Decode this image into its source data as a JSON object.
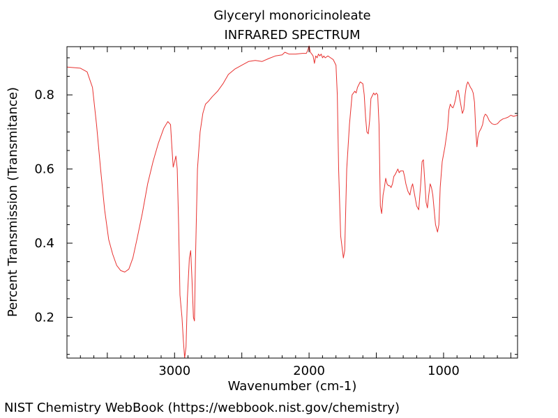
{
  "chart_data": {
    "type": "line",
    "title": "Glyceryl monoricinoleate",
    "subtitle": "INFRARED SPECTRUM",
    "xlabel": "Wavenumber (cm-1)",
    "ylabel": "Percent Transmission (Transmitance)",
    "xlim": [
      3800,
      450
    ],
    "ylim": [
      0.09,
      0.93
    ],
    "x_reversed": true,
    "x_ticks": [
      3000,
      2000,
      1000
    ],
    "x_tick_labels": [
      "3000",
      "2000",
      "1000"
    ],
    "y_ticks": [
      0.2,
      0.4,
      0.6,
      0.8
    ],
    "y_tick_labels": [
      "0.2",
      "0.4",
      "0.6",
      "0.8"
    ],
    "grid": false,
    "series": [
      {
        "color": "#e8312f",
        "points": [
          [
            3800,
            0.875
          ],
          [
            3700,
            0.872
          ],
          [
            3650,
            0.862
          ],
          [
            3610,
            0.82
          ],
          [
            3580,
            0.72
          ],
          [
            3550,
            0.6
          ],
          [
            3520,
            0.49
          ],
          [
            3490,
            0.41
          ],
          [
            3460,
            0.37
          ],
          [
            3430,
            0.34
          ],
          [
            3400,
            0.326
          ],
          [
            3370,
            0.322
          ],
          [
            3340,
            0.33
          ],
          [
            3310,
            0.36
          ],
          [
            3280,
            0.41
          ],
          [
            3240,
            0.48
          ],
          [
            3200,
            0.56
          ],
          [
            3160,
            0.62
          ],
          [
            3120,
            0.67
          ],
          [
            3080,
            0.71
          ],
          [
            3050,
            0.728
          ],
          [
            3030,
            0.72
          ],
          [
            3020,
            0.66
          ],
          [
            3010,
            0.605
          ],
          [
            3000,
            0.62
          ],
          [
            2990,
            0.635
          ],
          [
            2980,
            0.6
          ],
          [
            2970,
            0.45
          ],
          [
            2960,
            0.26
          ],
          [
            2945,
            0.2
          ],
          [
            2935,
            0.14
          ],
          [
            2925,
            0.09
          ],
          [
            2915,
            0.12
          ],
          [
            2905,
            0.25
          ],
          [
            2890,
            0.36
          ],
          [
            2880,
            0.38
          ],
          [
            2870,
            0.3
          ],
          [
            2860,
            0.2
          ],
          [
            2852,
            0.19
          ],
          [
            2845,
            0.35
          ],
          [
            2830,
            0.6
          ],
          [
            2810,
            0.7
          ],
          [
            2790,
            0.75
          ],
          [
            2770,
            0.775
          ],
          [
            2750,
            0.782
          ],
          [
            2720,
            0.795
          ],
          [
            2680,
            0.81
          ],
          [
            2640,
            0.83
          ],
          [
            2600,
            0.855
          ],
          [
            2550,
            0.87
          ],
          [
            2500,
            0.88
          ],
          [
            2450,
            0.89
          ],
          [
            2400,
            0.893
          ],
          [
            2350,
            0.89
          ],
          [
            2300,
            0.898
          ],
          [
            2250,
            0.905
          ],
          [
            2200,
            0.908
          ],
          [
            2180,
            0.915
          ],
          [
            2150,
            0.91
          ],
          [
            2100,
            0.91
          ],
          [
            2050,
            0.912
          ],
          [
            2020,
            0.912
          ],
          [
            2010,
            0.92
          ],
          [
            2000,
            0.932
          ],
          [
            1990,
            0.915
          ],
          [
            1980,
            0.91
          ],
          [
            1970,
            0.905
          ],
          [
            1960,
            0.885
          ],
          [
            1950,
            0.905
          ],
          [
            1940,
            0.9
          ],
          [
            1930,
            0.91
          ],
          [
            1920,
            0.905
          ],
          [
            1910,
            0.91
          ],
          [
            1900,
            0.9
          ],
          [
            1890,
            0.905
          ],
          [
            1880,
            0.9
          ],
          [
            1860,
            0.905
          ],
          [
            1840,
            0.9
          ],
          [
            1820,
            0.895
          ],
          [
            1800,
            0.88
          ],
          [
            1790,
            0.8
          ],
          [
            1780,
            0.6
          ],
          [
            1765,
            0.42
          ],
          [
            1745,
            0.36
          ],
          [
            1735,
            0.38
          ],
          [
            1720,
            0.6
          ],
          [
            1700,
            0.72
          ],
          [
            1680,
            0.8
          ],
          [
            1660,
            0.81
          ],
          [
            1650,
            0.805
          ],
          [
            1640,
            0.82
          ],
          [
            1620,
            0.835
          ],
          [
            1600,
            0.83
          ],
          [
            1590,
            0.8
          ],
          [
            1580,
            0.74
          ],
          [
            1570,
            0.7
          ],
          [
            1560,
            0.695
          ],
          [
            1550,
            0.73
          ],
          [
            1540,
            0.79
          ],
          [
            1520,
            0.805
          ],
          [
            1510,
            0.8
          ],
          [
            1500,
            0.805
          ],
          [
            1490,
            0.8
          ],
          [
            1480,
            0.72
          ],
          [
            1470,
            0.5
          ],
          [
            1460,
            0.48
          ],
          [
            1450,
            0.53
          ],
          [
            1440,
            0.55
          ],
          [
            1430,
            0.575
          ],
          [
            1420,
            0.56
          ],
          [
            1410,
            0.555
          ],
          [
            1400,
            0.555
          ],
          [
            1390,
            0.55
          ],
          [
            1380,
            0.56
          ],
          [
            1370,
            0.58
          ],
          [
            1360,
            0.585
          ],
          [
            1340,
            0.6
          ],
          [
            1330,
            0.59
          ],
          [
            1320,
            0.595
          ],
          [
            1300,
            0.595
          ],
          [
            1290,
            0.58
          ],
          [
            1280,
            0.56
          ],
          [
            1265,
            0.54
          ],
          [
            1250,
            0.53
          ],
          [
            1240,
            0.55
          ],
          [
            1230,
            0.56
          ],
          [
            1220,
            0.54
          ],
          [
            1200,
            0.5
          ],
          [
            1185,
            0.49
          ],
          [
            1170,
            0.56
          ],
          [
            1160,
            0.62
          ],
          [
            1150,
            0.625
          ],
          [
            1140,
            0.57
          ],
          [
            1130,
            0.51
          ],
          [
            1120,
            0.495
          ],
          [
            1110,
            0.53
          ],
          [
            1100,
            0.56
          ],
          [
            1090,
            0.55
          ],
          [
            1080,
            0.53
          ],
          [
            1060,
            0.45
          ],
          [
            1045,
            0.43
          ],
          [
            1035,
            0.45
          ],
          [
            1025,
            0.55
          ],
          [
            1010,
            0.62
          ],
          [
            990,
            0.66
          ],
          [
            970,
            0.71
          ],
          [
            960,
            0.76
          ],
          [
            950,
            0.775
          ],
          [
            940,
            0.768
          ],
          [
            930,
            0.765
          ],
          [
            920,
            0.775
          ],
          [
            910,
            0.79
          ],
          [
            900,
            0.81
          ],
          [
            890,
            0.812
          ],
          [
            880,
            0.79
          ],
          [
            870,
            0.77
          ],
          [
            860,
            0.75
          ],
          [
            850,
            0.76
          ],
          [
            840,
            0.8
          ],
          [
            830,
            0.825
          ],
          [
            820,
            0.835
          ],
          [
            810,
            0.828
          ],
          [
            800,
            0.82
          ],
          [
            790,
            0.815
          ],
          [
            780,
            0.805
          ],
          [
            770,
            0.78
          ],
          [
            760,
            0.7
          ],
          [
            752,
            0.66
          ],
          [
            745,
            0.685
          ],
          [
            735,
            0.7
          ],
          [
            720,
            0.71
          ],
          [
            710,
            0.72
          ],
          [
            700,
            0.74
          ],
          [
            690,
            0.748
          ],
          [
            680,
            0.745
          ],
          [
            670,
            0.738
          ],
          [
            660,
            0.73
          ],
          [
            640,
            0.722
          ],
          [
            620,
            0.72
          ],
          [
            600,
            0.722
          ],
          [
            580,
            0.73
          ],
          [
            560,
            0.735
          ],
          [
            540,
            0.737
          ],
          [
            520,
            0.74
          ],
          [
            500,
            0.745
          ],
          [
            480,
            0.742
          ],
          [
            450,
            0.745
          ]
        ]
      }
    ]
  },
  "footer": {
    "credit": "NIST Chemistry WebBook (https://webbook.nist.gov/chemistry)"
  }
}
